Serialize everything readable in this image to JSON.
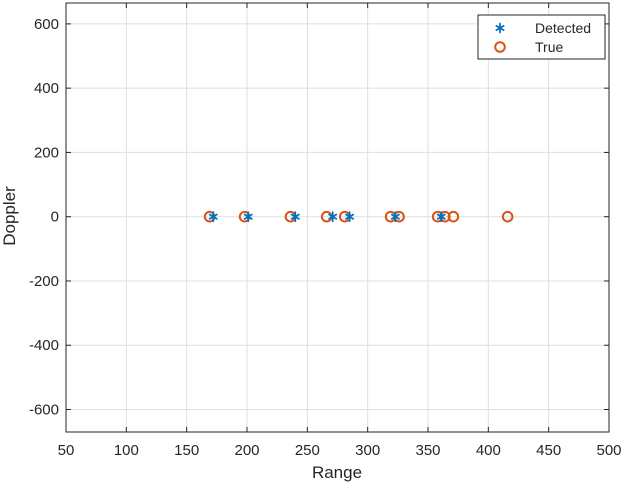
{
  "chart_data": {
    "type": "scatter",
    "title": "",
    "xlabel": "Range",
    "ylabel": "Doppler",
    "xlim": [
      50,
      500
    ],
    "ylim": [
      -670,
      665
    ],
    "xticks": [
      50,
      100,
      150,
      200,
      250,
      300,
      350,
      400,
      450,
      500
    ],
    "yticks": [
      -600,
      -400,
      -200,
      0,
      200,
      400,
      600
    ],
    "grid": true,
    "legend_position": "top-right",
    "series": [
      {
        "name": "Detected",
        "marker": "asterisk",
        "color": "#0072BD",
        "x": [
          172,
          201,
          240,
          271,
          285,
          323,
          361
        ],
        "y": [
          0,
          0,
          0,
          0,
          0,
          0,
          0
        ]
      },
      {
        "name": "True",
        "marker": "circle",
        "color": "#D95319",
        "x": [
          169,
          198,
          236,
          266,
          281,
          319,
          326,
          358,
          364,
          371,
          416
        ],
        "y": [
          0,
          0,
          0,
          0,
          0,
          0,
          0,
          0,
          0,
          0,
          0
        ]
      }
    ]
  }
}
